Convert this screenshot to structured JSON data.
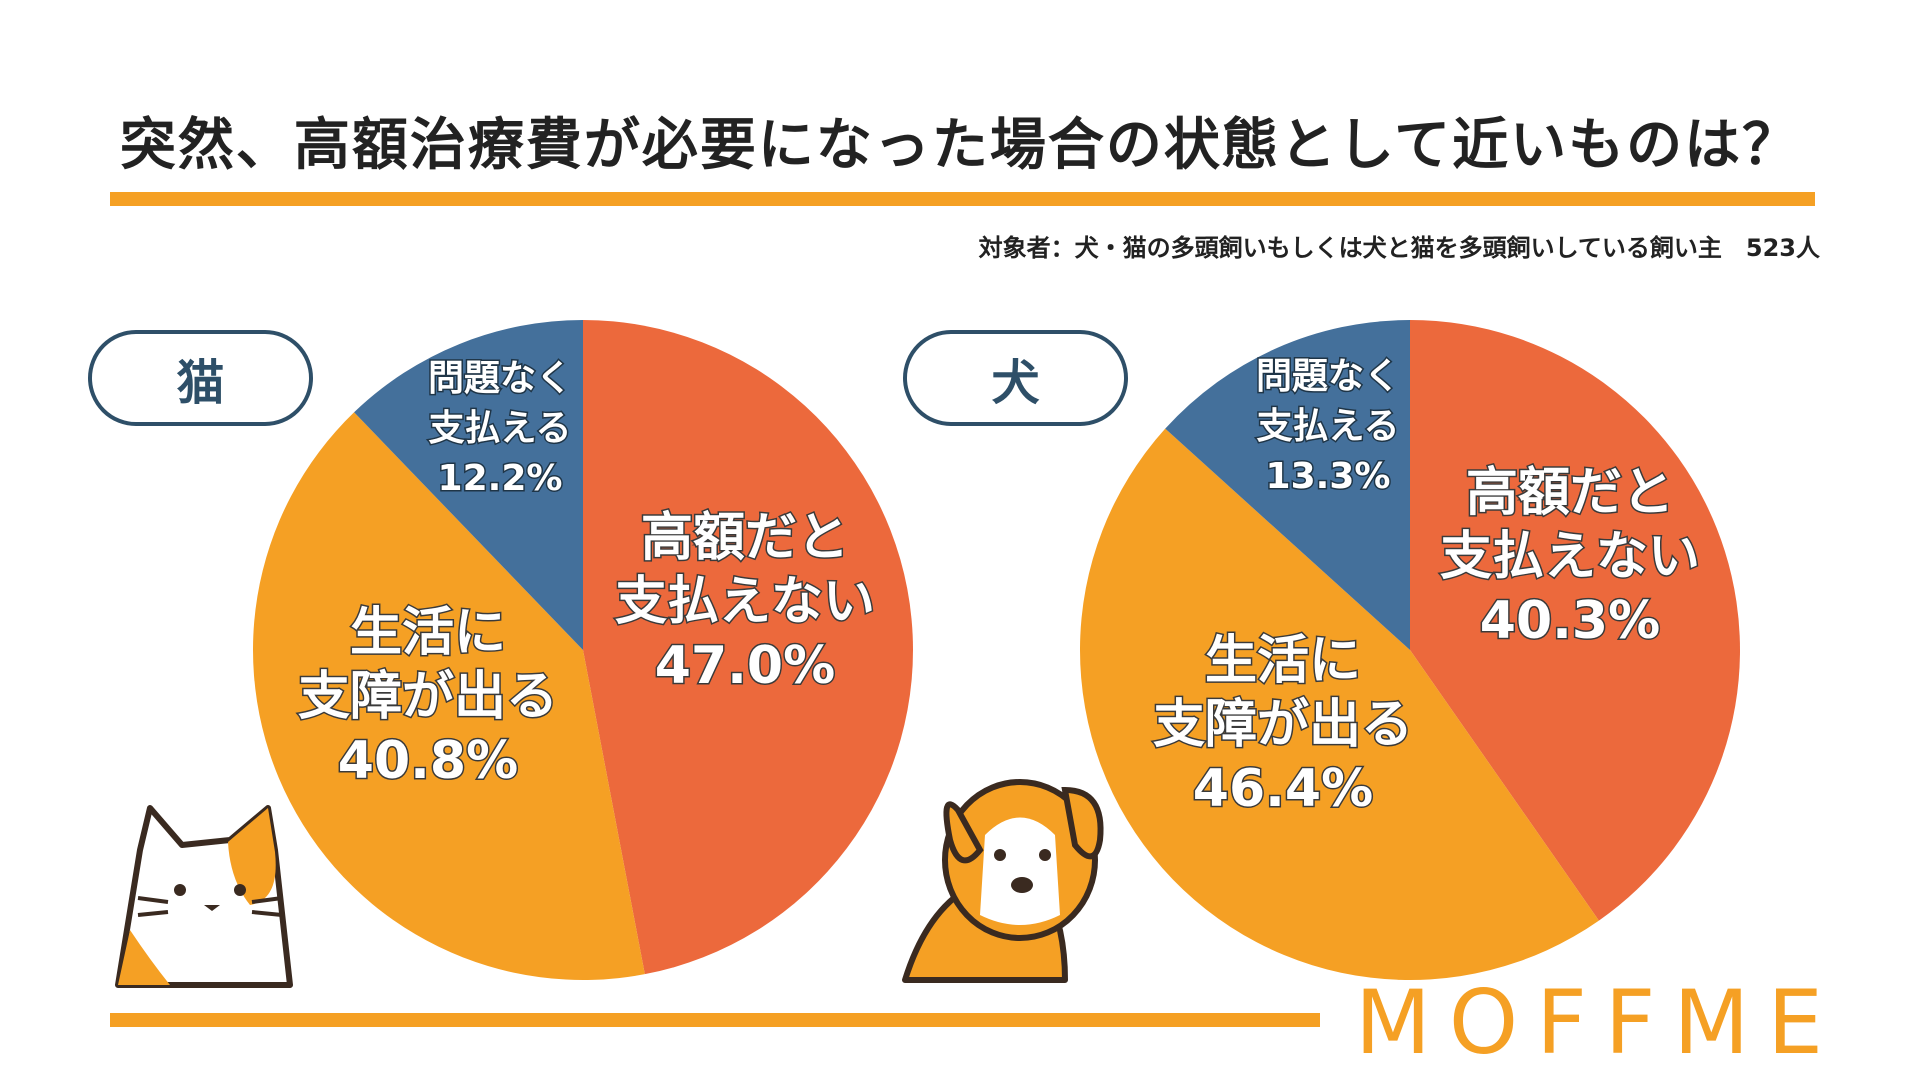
{
  "title": "突然、高額治療費が必要になった場合の状態として近いものは？",
  "subtitle": "対象者：犬・猫の多頭飼いもしくは犬と猫を多頭飼いしている飼い主　523人",
  "logo": "MOFFME",
  "colors": {
    "accent": "#F5A024",
    "navy": "#2E4F68",
    "red_slice": "#EC693C",
    "orange_slice": "#F5A024",
    "blue_slice": "#44709B"
  },
  "chart_data": [
    {
      "type": "pie",
      "title": "猫",
      "slices": [
        {
          "label_lines": [
            "高額だと",
            "支払えない"
          ],
          "value": 47.0,
          "value_text": "47.0%",
          "color": "#EC693C"
        },
        {
          "label_lines": [
            "生活に",
            "支障が出る"
          ],
          "value": 40.8,
          "value_text": "40.8%",
          "color": "#F5A024"
        },
        {
          "label_lines": [
            "問題なく",
            "支払える"
          ],
          "value": 12.2,
          "value_text": "12.2%",
          "color": "#44709B"
        }
      ]
    },
    {
      "type": "pie",
      "title": "犬",
      "slices": [
        {
          "label_lines": [
            "高額だと",
            "支払えない"
          ],
          "value": 40.3,
          "value_text": "40.3%",
          "color": "#EC693C"
        },
        {
          "label_lines": [
            "生活に",
            "支障が出る"
          ],
          "value": 46.4,
          "value_text": "46.4%",
          "color": "#F5A024"
        },
        {
          "label_lines": [
            "問題なく",
            "支払える"
          ],
          "value": 13.3,
          "value_text": "13.3%",
          "color": "#44709B"
        }
      ]
    }
  ]
}
